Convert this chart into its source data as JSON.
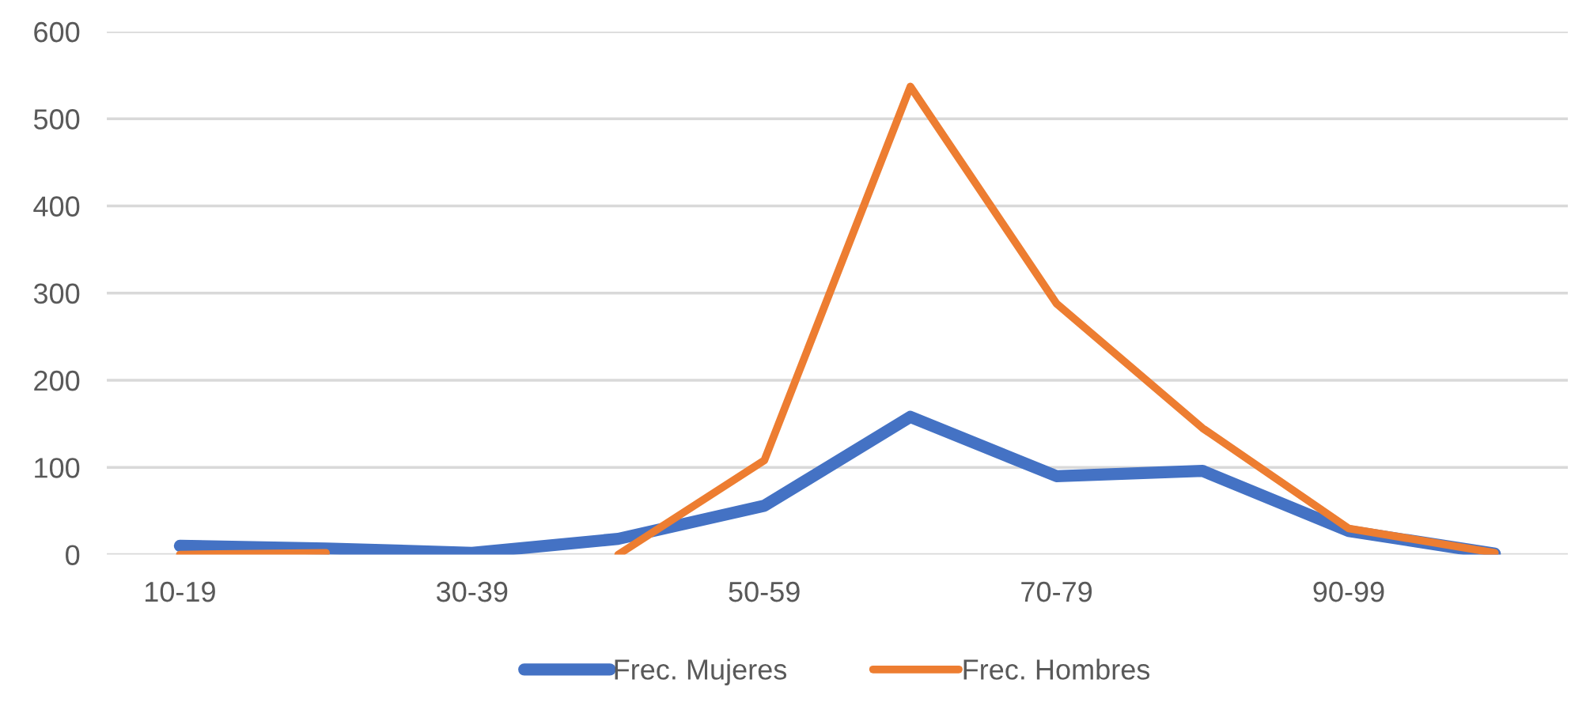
{
  "chart_data": {
    "type": "line",
    "categories": [
      "10-19",
      null,
      "30-39",
      null,
      "50-59",
      null,
      "70-79",
      null,
      "90-99",
      null
    ],
    "series": [
      {
        "name": "Frec. Mujeres",
        "color": "#4472c4",
        "values": [
          10,
          7,
          2,
          18,
          56,
          158,
          90,
          96,
          27,
          1
        ]
      },
      {
        "name": "Frec. Hombres",
        "color": "#ed7d31",
        "values": [
          0,
          2,
          null,
          0,
          108,
          537,
          288,
          145,
          30,
          2
        ]
      }
    ],
    "ylim": [
      0,
      600
    ],
    "yticks": [
      0,
      100,
      200,
      300,
      400,
      500,
      600
    ],
    "grid": "y",
    "legend": "bottom",
    "marker": "none",
    "line_style": "solid"
  }
}
